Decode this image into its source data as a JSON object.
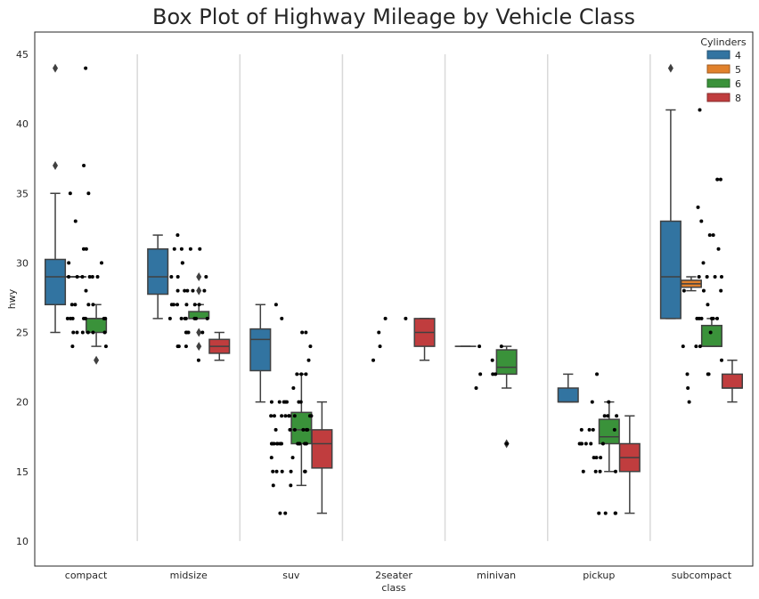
{
  "chart_data": {
    "type": "box",
    "title": "Box Plot of Highway Mileage by Vehicle Class",
    "xlabel": "class",
    "ylabel": "hwy",
    "ylim": [
      8.2,
      46.6
    ],
    "yticks": [
      10,
      15,
      20,
      25,
      30,
      35,
      40,
      45
    ],
    "grid": false,
    "legend": {
      "title": "Cylinders",
      "position": "top-right"
    },
    "categories": [
      "compact",
      "midsize",
      "suv",
      "2seater",
      "minivan",
      "pickup",
      "subcompact"
    ],
    "series": [
      {
        "name": "4",
        "color": "#3274a1",
        "boxes": [
          {
            "category": "compact",
            "whisker_low": 25,
            "q1": 27,
            "median": 29,
            "q3": 30.25,
            "whisker_high": 35,
            "outliers": [
              37,
              44
            ]
          },
          {
            "category": "midsize",
            "whisker_low": 26,
            "q1": 27.75,
            "median": 29,
            "q3": 31,
            "whisker_high": 32,
            "outliers": []
          },
          {
            "category": "suv",
            "whisker_low": 20,
            "q1": 22.25,
            "median": 24.5,
            "q3": 25.25,
            "whisker_high": 27,
            "outliers": []
          },
          {
            "category": "minivan",
            "whisker_low": 24,
            "q1": 24,
            "median": 24,
            "q3": 24,
            "whisker_high": 24,
            "outliers": []
          },
          {
            "category": "pickup",
            "whisker_low": 20,
            "q1": 20,
            "median": 20,
            "q3": 21,
            "whisker_high": 22,
            "outliers": []
          },
          {
            "category": "subcompact",
            "whisker_low": 26,
            "q1": 26,
            "median": 29,
            "q3": 33,
            "whisker_high": 41,
            "outliers": [
              44
            ]
          }
        ]
      },
      {
        "name": "5",
        "color": "#e1812c",
        "boxes": [
          {
            "category": "compact",
            "whisker_low": 29,
            "q1": 29,
            "median": 29,
            "q3": 29,
            "whisker_high": 29,
            "outliers": []
          },
          {
            "category": "subcompact",
            "whisker_low": 28,
            "q1": 28.25,
            "median": 28.5,
            "q3": 28.75,
            "whisker_high": 29,
            "outliers": []
          }
        ]
      },
      {
        "name": "6",
        "color": "#3a923a",
        "boxes": [
          {
            "category": "compact",
            "whisker_low": 24,
            "q1": 25,
            "median": 26,
            "q3": 26,
            "whisker_high": 27,
            "outliers": [
              23
            ]
          },
          {
            "category": "midsize",
            "whisker_low": 26,
            "q1": 26,
            "median": 26,
            "q3": 26.5,
            "whisker_high": 27,
            "outliers": [
              29,
              28,
              25,
              24
            ]
          },
          {
            "category": "suv",
            "whisker_low": 14,
            "q1": 17,
            "median": 18,
            "q3": 19.25,
            "whisker_high": 22,
            "outliers": []
          },
          {
            "category": "minivan",
            "whisker_low": 21,
            "q1": 22,
            "median": 22.5,
            "q3": 23.75,
            "whisker_high": 24,
            "outliers": [
              17
            ]
          },
          {
            "category": "pickup",
            "whisker_low": 15,
            "q1": 17,
            "median": 17.5,
            "q3": 18.75,
            "whisker_high": 20,
            "outliers": []
          },
          {
            "category": "subcompact",
            "whisker_low": 24,
            "q1": 24,
            "median": 24,
            "q3": 25.5,
            "whisker_high": 26,
            "outliers": []
          }
        ]
      },
      {
        "name": "8",
        "color": "#c03d3e",
        "boxes": [
          {
            "category": "midsize",
            "whisker_low": 23,
            "q1": 23.5,
            "median": 24,
            "q3": 24.5,
            "whisker_high": 25,
            "outliers": []
          },
          {
            "category": "suv",
            "whisker_low": 12,
            "q1": 15.25,
            "median": 17,
            "q3": 18,
            "whisker_high": 20,
            "outliers": []
          },
          {
            "category": "2seater",
            "whisker_low": 23,
            "q1": 24,
            "median": 25,
            "q3": 26,
            "whisker_high": 26,
            "outliers": []
          },
          {
            "category": "pickup",
            "whisker_low": 12,
            "q1": 15,
            "median": 16,
            "q3": 17,
            "whisker_high": 19,
            "outliers": []
          },
          {
            "category": "subcompact",
            "whisker_low": 20,
            "q1": 21,
            "median": 21,
            "q3": 22,
            "whisker_high": 23,
            "outliers": []
          }
        ]
      }
    ],
    "strip_points": [
      {
        "category": "compact",
        "values": [
          44,
          35,
          35,
          33,
          31,
          31,
          30,
          30,
          29,
          29,
          29,
          29,
          29,
          29,
          28,
          27,
          27,
          27,
          27,
          26,
          26,
          26,
          26,
          26,
          26,
          26,
          25,
          25,
          25,
          25,
          25,
          25,
          24,
          24,
          37
        ]
      },
      {
        "category": "midsize",
        "values": [
          32,
          31,
          31,
          31,
          31,
          30,
          30,
          29,
          29,
          29,
          28,
          28,
          28,
          28,
          28,
          27,
          27,
          27,
          27,
          27,
          27,
          26,
          26,
          26,
          26,
          26,
          26,
          26,
          25,
          25,
          25,
          25,
          24,
          24,
          24,
          23
        ]
      },
      {
        "category": "suv",
        "values": [
          27,
          26,
          25,
          25,
          24,
          23,
          22,
          22,
          22,
          21,
          20,
          20,
          20,
          20,
          20,
          20,
          20,
          19,
          19,
          19,
          19,
          19,
          19,
          19,
          19,
          19,
          18,
          18,
          18,
          18,
          18,
          18,
          17,
          17,
          17,
          17,
          17,
          17,
          17,
          17,
          17,
          17,
          17,
          17,
          16,
          16,
          15,
          15,
          15,
          15,
          15,
          15,
          14,
          14,
          12,
          12
        ]
      },
      {
        "category": "2seater",
        "values": [
          26,
          26,
          25,
          24,
          23
        ]
      },
      {
        "category": "minivan",
        "values": [
          24,
          24,
          23,
          22,
          22,
          22,
          21,
          17
        ]
      },
      {
        "category": "pickup",
        "values": [
          22,
          20,
          20,
          19,
          19,
          19,
          18,
          18,
          18,
          18,
          17,
          17,
          17,
          17,
          17,
          17,
          16,
          16,
          16,
          15,
          15,
          15,
          15,
          12,
          12,
          12,
          12
        ]
      },
      {
        "category": "subcompact",
        "values": [
          44,
          41,
          36,
          36,
          34,
          33,
          32,
          32,
          31,
          30,
          29,
          29,
          29,
          29,
          28,
          28,
          28,
          27,
          26,
          26,
          26,
          26,
          26,
          26,
          25,
          24,
          24,
          24,
          23,
          22,
          22,
          22,
          21,
          20
        ]
      }
    ]
  }
}
